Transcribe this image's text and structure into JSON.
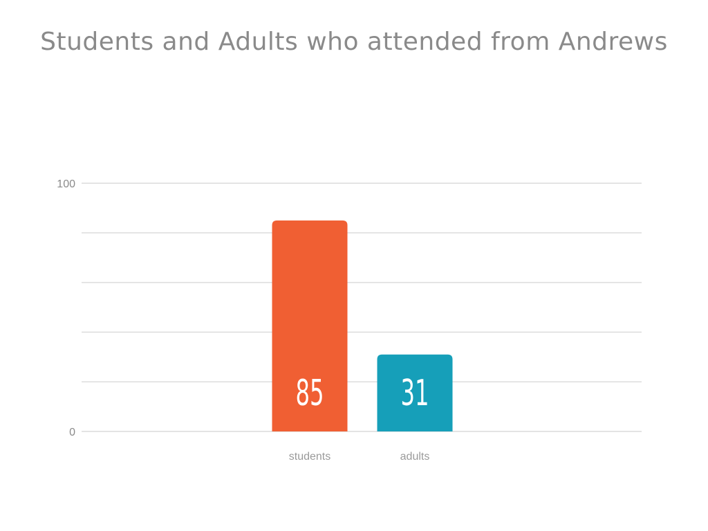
{
  "chart_data": {
    "type": "bar",
    "title": "Students and Adults who attended from Andrews",
    "categories": [
      "students",
      "adults"
    ],
    "values": [
      85,
      31
    ],
    "colors": [
      "#f05f33",
      "#169fb9"
    ],
    "data_labels": [
      "85",
      "31"
    ],
    "yticks": [
      {
        "value": 0,
        "label": "0"
      },
      {
        "value": 100,
        "label": "100"
      }
    ],
    "ylim": [
      0,
      100
    ],
    "gridlines": [
      0,
      20,
      40,
      60,
      80,
      100
    ],
    "grid": true,
    "xlabel": "",
    "ylabel": ""
  }
}
